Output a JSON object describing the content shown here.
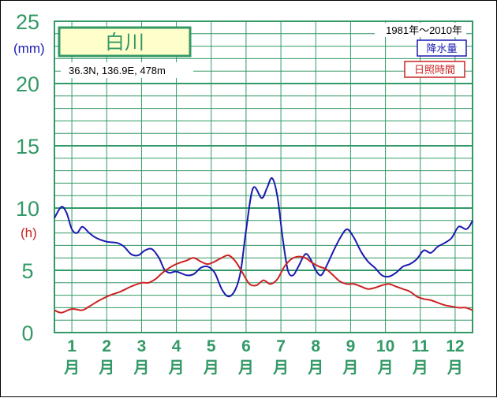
{
  "chart_data": {
    "type": "line",
    "title": "白川",
    "location": "36.3N, 136.9E, 478m",
    "period": "1981年〜2010年",
    "y_left_unit": "(mm)",
    "y_right_unit": "(h)",
    "ylim": [
      0,
      25
    ],
    "yticks": [
      "0",
      "5",
      "10",
      "15",
      "20",
      "25"
    ],
    "month_suffix": "月",
    "categories": [
      "1",
      "2",
      "3",
      "4",
      "5",
      "6",
      "7",
      "8",
      "9",
      "10",
      "11",
      "12"
    ],
    "xlim": [
      0.5,
      12.5
    ],
    "grid": true,
    "legend_position": "top-right",
    "series": [
      {
        "name": "降水量",
        "color": "#1a1ab0",
        "points": [
          [
            0.5,
            9.2
          ],
          [
            0.7,
            10.1
          ],
          [
            0.85,
            9.6
          ],
          [
            1.0,
            8.3
          ],
          [
            1.15,
            8.0
          ],
          [
            1.3,
            8.5
          ],
          [
            1.5,
            8.0
          ],
          [
            1.7,
            7.6
          ],
          [
            2.0,
            7.3
          ],
          [
            2.3,
            7.2
          ],
          [
            2.5,
            6.9
          ],
          [
            2.7,
            6.3
          ],
          [
            2.9,
            6.2
          ],
          [
            3.1,
            6.6
          ],
          [
            3.3,
            6.7
          ],
          [
            3.5,
            6.0
          ],
          [
            3.65,
            5.1
          ],
          [
            3.8,
            4.8
          ],
          [
            4.0,
            4.9
          ],
          [
            4.3,
            4.6
          ],
          [
            4.5,
            4.7
          ],
          [
            4.7,
            5.2
          ],
          [
            4.9,
            5.3
          ],
          [
            5.1,
            4.8
          ],
          [
            5.3,
            3.5
          ],
          [
            5.5,
            2.9
          ],
          [
            5.7,
            3.5
          ],
          [
            5.85,
            5.0
          ],
          [
            6.0,
            8.2
          ],
          [
            6.2,
            11.6
          ],
          [
            6.45,
            10.8
          ],
          [
            6.6,
            11.6
          ],
          [
            6.75,
            12.4
          ],
          [
            6.9,
            10.9
          ],
          [
            7.05,
            7.6
          ],
          [
            7.2,
            5.0
          ],
          [
            7.35,
            4.6
          ],
          [
            7.5,
            5.3
          ],
          [
            7.7,
            6.3
          ],
          [
            7.85,
            5.9
          ],
          [
            8.0,
            5.0
          ],
          [
            8.15,
            4.6
          ],
          [
            8.3,
            5.3
          ],
          [
            8.5,
            6.5
          ],
          [
            8.7,
            7.6
          ],
          [
            8.9,
            8.3
          ],
          [
            9.1,
            7.6
          ],
          [
            9.3,
            6.5
          ],
          [
            9.5,
            5.7
          ],
          [
            9.7,
            5.2
          ],
          [
            9.9,
            4.6
          ],
          [
            10.1,
            4.5
          ],
          [
            10.3,
            4.8
          ],
          [
            10.5,
            5.3
          ],
          [
            10.7,
            5.5
          ],
          [
            10.9,
            5.9
          ],
          [
            11.1,
            6.6
          ],
          [
            11.3,
            6.4
          ],
          [
            11.5,
            6.9
          ],
          [
            11.7,
            7.2
          ],
          [
            11.9,
            7.6
          ],
          [
            12.1,
            8.5
          ],
          [
            12.3,
            8.3
          ],
          [
            12.4,
            8.5
          ],
          [
            12.5,
            9.0
          ]
        ]
      },
      {
        "name": "日照時間",
        "color": "#cc2222",
        "points": [
          [
            0.5,
            1.8
          ],
          [
            0.7,
            1.6
          ],
          [
            1.0,
            1.9
          ],
          [
            1.3,
            1.8
          ],
          [
            1.5,
            2.1
          ],
          [
            1.8,
            2.6
          ],
          [
            2.1,
            3.0
          ],
          [
            2.4,
            3.3
          ],
          [
            2.7,
            3.7
          ],
          [
            3.0,
            4.0
          ],
          [
            3.2,
            4.0
          ],
          [
            3.4,
            4.3
          ],
          [
            3.6,
            4.8
          ],
          [
            3.8,
            5.2
          ],
          [
            4.0,
            5.5
          ],
          [
            4.3,
            5.8
          ],
          [
            4.5,
            6.0
          ],
          [
            4.7,
            5.7
          ],
          [
            4.9,
            5.5
          ],
          [
            5.1,
            5.7
          ],
          [
            5.3,
            6.0
          ],
          [
            5.5,
            6.2
          ],
          [
            5.7,
            5.7
          ],
          [
            5.9,
            4.8
          ],
          [
            6.1,
            3.9
          ],
          [
            6.3,
            3.8
          ],
          [
            6.5,
            4.2
          ],
          [
            6.7,
            3.9
          ],
          [
            6.9,
            4.3
          ],
          [
            7.1,
            5.3
          ],
          [
            7.3,
            5.9
          ],
          [
            7.5,
            6.1
          ],
          [
            7.7,
            6.0
          ],
          [
            7.9,
            5.6
          ],
          [
            8.1,
            5.3
          ],
          [
            8.3,
            5.1
          ],
          [
            8.5,
            4.6
          ],
          [
            8.7,
            4.1
          ],
          [
            8.9,
            3.9
          ],
          [
            9.1,
            3.9
          ],
          [
            9.3,
            3.7
          ],
          [
            9.5,
            3.5
          ],
          [
            9.7,
            3.6
          ],
          [
            9.9,
            3.8
          ],
          [
            10.1,
            3.9
          ],
          [
            10.3,
            3.7
          ],
          [
            10.5,
            3.5
          ],
          [
            10.7,
            3.3
          ],
          [
            10.9,
            2.9
          ],
          [
            11.1,
            2.7
          ],
          [
            11.3,
            2.6
          ],
          [
            11.5,
            2.4
          ],
          [
            11.7,
            2.2
          ],
          [
            11.9,
            2.1
          ],
          [
            12.1,
            2.0
          ],
          [
            12.3,
            2.0
          ],
          [
            12.5,
            1.8
          ]
        ]
      }
    ]
  }
}
